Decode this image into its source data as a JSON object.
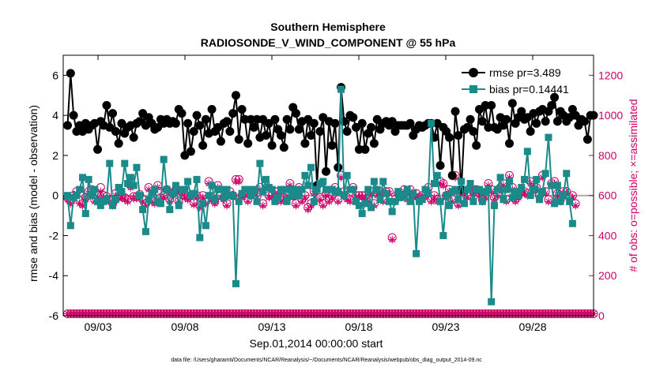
{
  "chart_data": {
    "type": "line",
    "title": "Southern Hemisphere",
    "subtitle": "RADIOSONDE_V_WIND_COMPONENT @ 55 hPa",
    "xlabel": "Sep.01,2014 00:00:00 start",
    "ylabel_left": "rmse and bias (model - observation)",
    "ylabel_right": "# of obs: o=possible; ×=assimilated",
    "footer": "data file: /Users/gharamti/Documents/NCAR/Reanalysis/~/Documents/NCAR/Reanalysis/webpub/obs_diag_output_2014-09.nc",
    "xlim": [
      1,
      31.5
    ],
    "ylim_left": [
      -6,
      7
    ],
    "ylim_right": [
      0,
      1300
    ],
    "x_ticks": [
      3,
      8,
      13,
      18,
      23,
      28
    ],
    "x_tick_labels": [
      "09/03",
      "09/08",
      "09/13",
      "09/18",
      "09/23",
      "09/28"
    ],
    "y_ticks_left": [
      -6,
      -4,
      -2,
      0,
      2,
      4,
      6
    ],
    "y_ticks_right": [
      0,
      200,
      400,
      600,
      800,
      1000,
      1200
    ],
    "grid": false,
    "legend_position": "top-right",
    "zero_line": true,
    "colors": {
      "rmse": "#000000",
      "bias": "#1a8a8a",
      "obs": "#cc0066",
      "zero": "#aaaaaa"
    },
    "series": [
      {
        "name": "rmse pr=3.489",
        "axis": "left",
        "marker": "circle",
        "values": [
          3.5,
          6.1,
          4.0,
          3.2,
          3.5,
          3.2,
          3.6,
          3.3,
          3.5,
          3.6,
          2.3,
          3.7,
          3.5,
          4.5,
          3.4,
          4.1,
          3.2,
          2.6,
          3.6,
          3.1,
          3.4,
          3.5,
          2.9,
          3.6,
          3.7,
          4.1,
          3.5,
          3.9,
          3.6,
          3.3,
          3.4,
          3.8,
          3.6,
          3.8,
          3.6,
          3.7,
          3.6,
          4.3,
          4.1,
          2.0,
          3.6,
          2.2,
          3.2,
          4.0,
          3.5,
          2.5,
          3.8,
          3.1,
          4.3,
          3.2,
          3.4,
          2.7,
          3.6,
          3.7,
          3.2,
          4.1,
          5.0,
          2.8,
          4.3,
          3.8,
          2.6,
          3.8,
          3.4,
          3.8,
          2.9,
          3.8,
          3.0,
          3.6,
          2.5,
          3.8,
          3.3,
          3.0,
          2.4,
          3.8,
          3.3,
          4.4,
          4.1,
          3.3,
          3.7,
          2.6,
          3.8,
          3.0,
          3.6,
          0.5,
          3.2,
          3.9,
          1.2,
          3.7,
          2.5,
          3.6,
          1.4,
          5.4,
          3.7,
          3.2,
          4.0,
          3.9,
          3.4,
          2.3,
          3.6,
          2.3,
          3.1,
          3.4,
          2.6,
          3.8,
          3.3,
          3.6,
          3.7,
          3.5,
          3.7,
          3.2,
          3.5,
          3.5,
          3.5,
          3.5,
          3.6,
          3.0,
          3.3,
          3.5,
          3.4,
          3.5,
          3.6,
          3.6,
          2.9,
          3.6,
          1.5,
          3.4,
          3.2,
          2.9,
          1.0,
          4.2,
          3.0,
          0.3,
          3.3,
          3.4,
          3.8,
          3.2,
          2.5,
          4.3,
          3.7,
          4.5,
          3.4,
          4.5,
          3.4,
          3.3,
          3.9,
          3.5,
          3.8,
          2.6,
          4.6,
          3.6,
          3.9,
          4.2,
          3.8,
          3.9,
          3.2,
          4.1,
          3.6,
          4.2,
          4.3,
          3.7,
          4.2,
          4.5,
          4.9,
          3.7,
          4.2,
          4.0,
          3.7,
          3.9,
          4.3,
          4.0,
          3.5,
          3.8,
          3.7,
          2.8,
          4.0,
          4.0
        ]
      },
      {
        "name": "bias pr=0.14441",
        "axis": "left",
        "marker": "square",
        "values": [
          0.0,
          -1.5,
          -0.1,
          0.0,
          0.3,
          0.9,
          -0.9,
          0.8,
          0.0,
          0.3,
          -0.3,
          -0.5,
          -0.3,
          -0.2,
          1.6,
          -0.5,
          -0.2,
          0.4,
          0.2,
          1.6,
          0.6,
          0.9,
          0.5,
          1.4,
          0.0,
          -0.7,
          -1.8,
          -0.2,
          0.1,
          0.3,
          -0.3,
          -0.4,
          1.8,
          0.3,
          -0.7,
          0.1,
          0.5,
          -0.5,
          0.3,
          0.3,
          0.7,
          0.0,
          0.1,
          0.8,
          -2.1,
          -0.4,
          -1.5,
          0.0,
          0.5,
          -0.2,
          0.3,
          0.3,
          -0.1,
          0.3,
          0.0,
          0.0,
          -4.4,
          -0.3,
          0.1,
          0.3,
          0.3,
          0.0,
          0.3,
          -0.3,
          1.6,
          0.2,
          0.8,
          0.4,
          0.3,
          -0.3,
          -0.1,
          0.3,
          0.3,
          -0.3,
          0.3,
          0.0,
          0.3,
          0.0,
          0.3,
          1.0,
          0.5,
          1.4,
          -0.3,
          0.3,
          0.6,
          0.7,
          0.3,
          0.3,
          0.3,
          0.2,
          0.2,
          5.3,
          0.0,
          1.0,
          0.3,
          0.3,
          -0.3,
          -0.5,
          -0.9,
          -0.4,
          0.3,
          -0.6,
          0.7,
          0.3,
          -0.2,
          0.7,
          0.1,
          -0.3,
          -0.8,
          -0.3,
          0.2,
          -0.1,
          0.0,
          0.3,
          -0.3,
          0.1,
          -2.9,
          -0.3,
          -0.2,
          0.3,
          0.1,
          3.6,
          0.6,
          1.0,
          -0.3,
          -2.0,
          0.0,
          -0.5,
          0.2,
          0.3,
          -0.2,
          0.7,
          -0.4,
          0.3,
          0.6,
          -0.3,
          0.3,
          0.3,
          -0.3,
          0.2,
          0.3,
          -5.3,
          -0.5,
          0.3,
          0.9,
          -0.2,
          0.3,
          0.7,
          -0.1,
          0.2,
          0.0,
          0.4,
          0.8,
          2.2,
          0.0,
          0.3,
          0.8,
          -0.2,
          0.2,
          1.1,
          2.9,
          0.5,
          -0.4,
          0.5,
          -0.3,
          0.0,
          1.1,
          -0.3,
          -1.4
        ]
      },
      {
        "name": "obs possible",
        "axis": "right",
        "marker": "open-circle",
        "values": [
          590,
          570,
          600,
          620,
          575,
          560,
          590,
          620,
          630,
          580,
          600,
          640,
          600,
          595,
          580,
          560,
          610,
          595,
          600,
          590,
          580,
          650,
          595,
          595,
          605,
          580,
          560,
          640,
          580,
          570,
          650,
          590,
          600,
          630,
          580,
          610,
          630,
          570,
          620,
          600,
          590,
          600,
          565,
          600,
          550,
          600,
          570,
          670,
          590,
          570,
          650,
          600,
          590,
          560,
          620,
          600,
          680,
          680,
          600,
          610,
          580,
          610,
          620,
          595,
          640,
          560,
          650,
          600,
          600,
          620,
          620,
          580,
          590,
          600,
          660,
          600,
          560,
          640,
          580,
          600,
          540,
          560,
          620,
          650,
          590,
          560,
          610,
          580,
          600,
          640,
          580,
          700,
          620,
          590,
          580,
          640,
          600,
          600,
          600,
          600,
          580,
          620,
          560,
          610,
          620,
          580,
          620,
          620,
          390,
          580,
          610,
          600,
          630,
          590,
          630,
          600,
          610,
          590,
          600,
          600,
          640,
          580,
          600,
          580,
          670,
          660,
          600,
          630,
          580,
          700,
          560,
          620,
          620,
          600,
          640,
          620,
          630,
          610,
          580,
          600,
          660,
          630,
          590,
          610,
          640,
          660,
          580,
          700,
          640,
          580,
          600,
          620,
          620,
          610,
          670,
          630,
          640,
          600,
          700,
          620,
          580,
          660,
          670,
          610,
          580,
          620,
          620,
          590,
          600,
          560
        ]
      },
      {
        "name": "obs assimilated",
        "axis": "right",
        "marker": "star",
        "values": [
          580,
          560,
          590,
          610,
          560,
          550,
          580,
          610,
          620,
          570,
          590,
          620,
          590,
          585,
          570,
          550,
          600,
          585,
          590,
          580,
          570,
          640,
          585,
          585,
          595,
          570,
          550,
          630,
          570,
          560,
          640,
          580,
          590,
          620,
          570,
          600,
          620,
          560,
          610,
          590,
          580,
          590,
          555,
          590,
          540,
          590,
          560,
          660,
          580,
          560,
          640,
          590,
          580,
          550,
          610,
          590,
          670,
          670,
          590,
          600,
          570,
          600,
          610,
          585,
          630,
          550,
          640,
          590,
          590,
          610,
          610,
          570,
          580,
          590,
          650,
          590,
          550,
          630,
          570,
          590,
          530,
          550,
          610,
          640,
          580,
          550,
          600,
          570,
          590,
          630,
          570,
          690,
          610,
          580,
          570,
          630,
          590,
          590,
          590,
          590,
          570,
          610,
          550,
          600,
          610,
          570,
          610,
          610,
          380,
          570,
          600,
          590,
          620,
          580,
          620,
          590,
          600,
          580,
          590,
          590,
          630,
          570,
          590,
          570,
          660,
          650,
          590,
          620,
          570,
          690,
          550,
          610,
          610,
          590,
          630,
          610,
          620,
          600,
          570,
          590,
          650,
          620,
          580,
          600,
          630,
          650,
          570,
          690,
          630,
          570,
          590,
          610,
          610,
          600,
          660,
          620,
          630,
          590,
          690,
          610,
          570,
          650,
          660,
          600,
          570,
          610,
          610,
          580,
          590,
          550
        ]
      }
    ],
    "possible_bottom_row": 10,
    "assimilated_bottom_row": 10
  }
}
